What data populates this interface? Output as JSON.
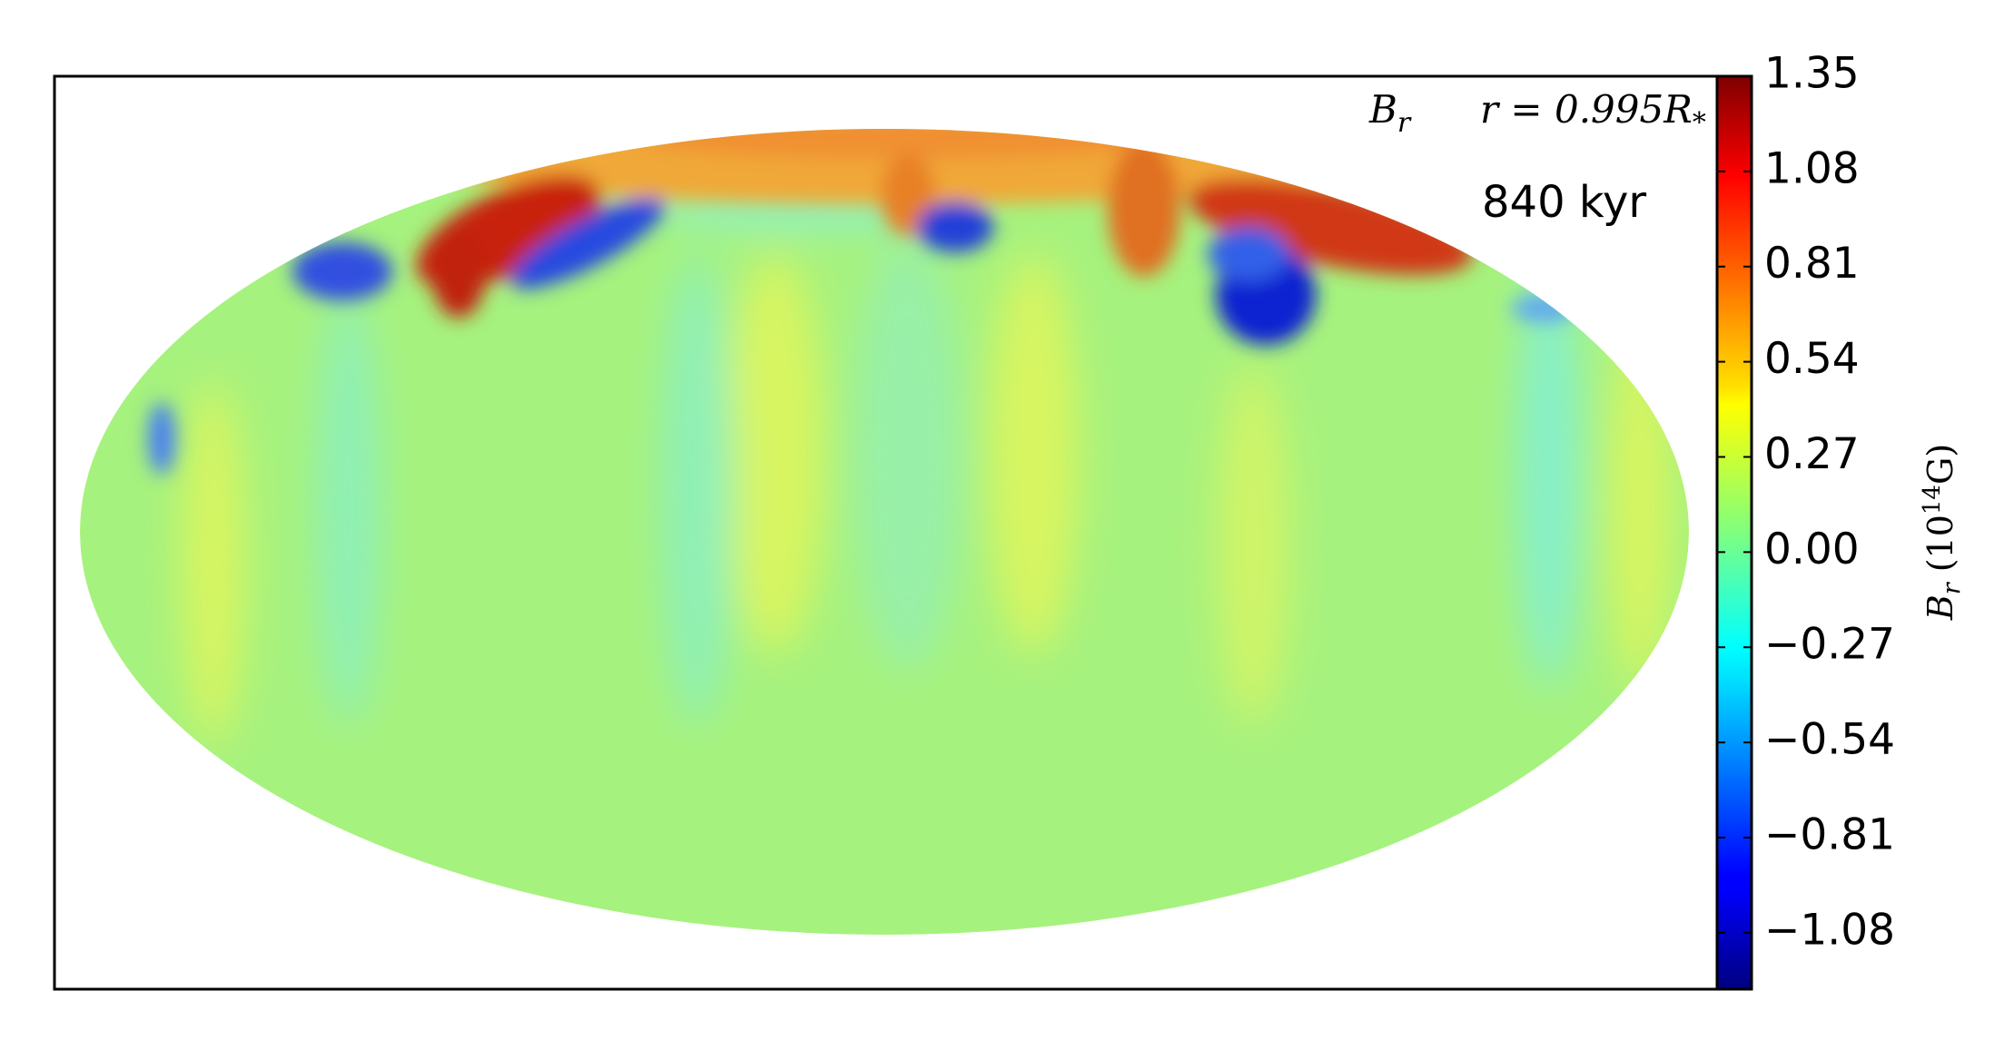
{
  "chart_data": {
    "type": "map",
    "projection": "mollweide",
    "colormap": "jet",
    "field_label": {
      "symbol": "B",
      "subscript": "r"
    },
    "radius_label": {
      "main": "r = 0.995R",
      "subscript": "*"
    },
    "time_label": "840 kyr",
    "colorbar_label": {
      "symbol": "B",
      "subscript": "r",
      "prefix": "(10",
      "exponent": "14",
      "suffix": "G)"
    },
    "clim": [
      -1.24,
      1.35
    ],
    "cticks": [
      1.35,
      1.08,
      0.81,
      0.54,
      0.27,
      {
        "value": 0.0,
        "label": "0.00"
      },
      {
        "value": -0.27,
        "label": "−0.27"
      },
      {
        "value": -0.54,
        "label": "−0.54"
      },
      {
        "value": -0.81,
        "label": "−0.81"
      },
      {
        "value": -1.08,
        "label": "−1.08"
      }
    ]
  }
}
